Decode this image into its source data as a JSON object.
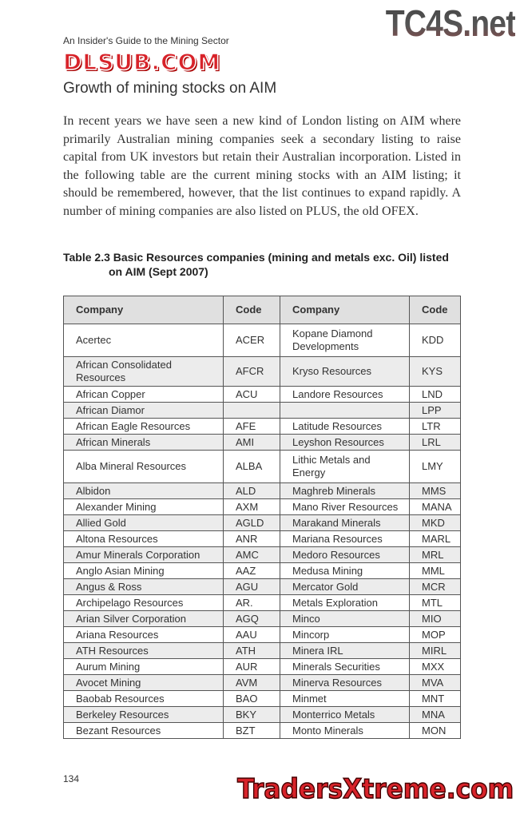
{
  "header": {
    "running_head": "An Insider's Guide to the Mining Sector",
    "watermark_top": "TC4S.net"
  },
  "section_title": "Growth of mining stocks on AIM",
  "paragraph": "In recent years we have seen a new kind of London listing on AIM where primarily Australian mining companies seek a secondary listing to raise capital from UK investors but retain their Australian incorporation. Listed in the following table are the current mining stocks with an AIM listing; it should be remembered, however, that the list continues to expand rapidly. A number of mining companies are also listed on PLUS, the old OFEX.",
  "table": {
    "caption_line1": "Table 2.3 Basic Resources companies (mining and metals exc. Oil) listed",
    "caption_line2": "on AIM (Sept 2007)",
    "headers": [
      "Company",
      "Code",
      "Company",
      "Code"
    ],
    "rows": [
      [
        "Acertec",
        "ACER",
        "Kopane Diamond Developments",
        "KDD"
      ],
      [
        "African Consolidated Resources",
        "AFCR",
        "Kryso Resources",
        "KYS"
      ],
      [
        "African Copper",
        "ACU",
        "Landore Resources",
        "LND"
      ],
      [
        "African Diamor",
        "",
        "",
        "LPP"
      ],
      [
        "African Eagle Resources",
        "AFE",
        "Latitude Resources",
        "LTR"
      ],
      [
        "African Minerals",
        "AMI",
        "Leyshon Resources",
        "LRL"
      ],
      [
        "Alba Mineral Resources",
        "ALBA",
        "Lithic Metals and Energy",
        "LMY"
      ],
      [
        "Albidon",
        "ALD",
        "Maghreb Minerals",
        "MMS"
      ],
      [
        "Alexander Mining",
        "AXM",
        "Mano River Resources",
        "MANA"
      ],
      [
        "Allied Gold",
        "AGLD",
        "Marakand Minerals",
        "MKD"
      ],
      [
        "Altona Resources",
        "ANR",
        "Mariana Resources",
        "MARL"
      ],
      [
        "Amur Minerals Corporation",
        "AMC",
        "Medoro Resources",
        "MRL"
      ],
      [
        "Anglo Asian Mining",
        "AAZ",
        "Medusa Mining",
        "MML"
      ],
      [
        "Angus & Ross",
        "AGU",
        "Mercator Gold",
        "MCR"
      ],
      [
        "Archipelago Resources",
        "AR.",
        "Metals Exploration",
        "MTL"
      ],
      [
        "Arian Silver Corporation",
        "AGQ",
        "Minco",
        "MIO"
      ],
      [
        "Ariana Resources",
        "AAU",
        "Mincorp",
        "MOP"
      ],
      [
        "ATH Resources",
        "ATH",
        "Minera IRL",
        "MIRL"
      ],
      [
        "Aurum Mining",
        "AUR",
        "Minerals Securities",
        "MXX"
      ],
      [
        "Avocet Mining",
        "AVM",
        "Minerva Resources",
        "MVA"
      ],
      [
        "Baobab Resources",
        "BAO",
        "Minmet",
        "MNT"
      ],
      [
        "Berkeley Resources",
        "BKY",
        "Monterrico Metals",
        "MNA"
      ],
      [
        "Bezant Resources",
        "BZT",
        "Monto Minerals",
        "MON"
      ]
    ]
  },
  "watermark_middle": "DLSUB.COM",
  "footer": {
    "page_number": "134",
    "watermark_bottom": "TradersXtreme.com"
  },
  "colors": {
    "text": "#333333",
    "header_fill": "#e0e0e0",
    "row_shade": "#ececec",
    "watermark_red": "#d8232a"
  }
}
